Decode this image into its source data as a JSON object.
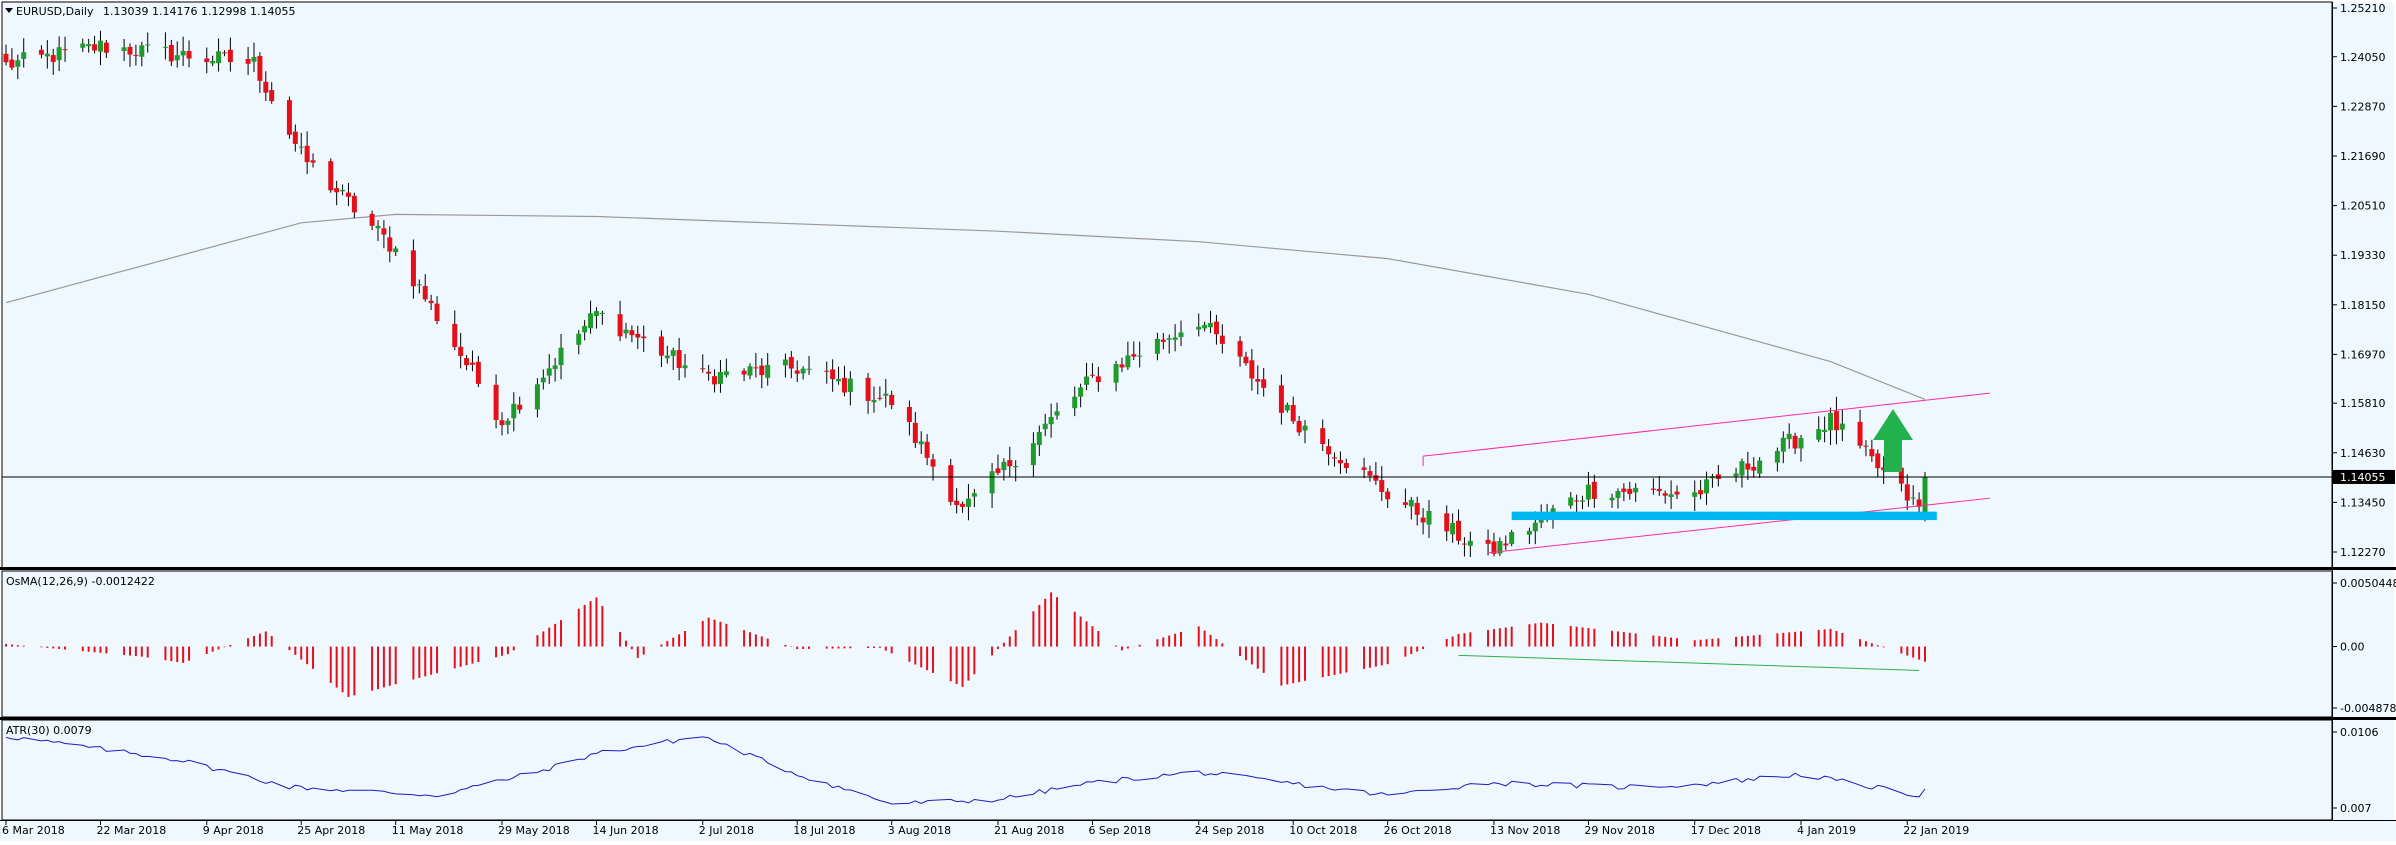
{
  "window": {
    "symbol_label": "EURUSD,Daily",
    "ohlc_label": "1.13039 1.14176 1.12998 1.14055"
  },
  "colors": {
    "background": "#f0f8ff",
    "frame": "#000000",
    "bull_candle": "#1f9a2c",
    "bear_candle": "#e3101a",
    "ma_line": "#999999",
    "channel": "#ff2aa0",
    "support_zone": "#00b7f1",
    "up_arrow": "#22b14c",
    "osma_bars": "#e3101a",
    "divergence_line": "#2fae49",
    "atr_line": "#1c1cbe",
    "price_badge": "#000000"
  },
  "chart_data": [
    {
      "type": "candlestick",
      "name": "EURUSD,Daily",
      "x_range": [
        "2018-03-06",
        "2019-01-25"
      ],
      "y_range": [
        1.2165,
        1.2563
      ],
      "y_ticks": [
        "1.25210",
        "1.24050",
        "1.22870",
        "1.21690",
        "1.20510",
        "1.19330",
        "1.18150",
        "1.16970",
        "1.15810",
        "1.14630",
        "1.13450",
        "1.12270"
      ],
      "current_price": "1.14055",
      "key_closes": [
        {
          "date": "2018-03-06",
          "close": 1.2385
        },
        {
          "date": "2018-03-22",
          "close": 1.243
        },
        {
          "date": "2018-04-17",
          "close": 1.239
        },
        {
          "date": "2018-04-25",
          "close": 1.217
        },
        {
          "date": "2018-05-11",
          "close": 1.1945
        },
        {
          "date": "2018-05-29",
          "close": 1.154
        },
        {
          "date": "2018-06-14",
          "close": 1.1795
        },
        {
          "date": "2018-07-02",
          "close": 1.1645
        },
        {
          "date": "2018-07-18",
          "close": 1.1665
        },
        {
          "date": "2018-08-03",
          "close": 1.1585
        },
        {
          "date": "2018-08-15",
          "close": 1.1325
        },
        {
          "date": "2018-09-06",
          "close": 1.164
        },
        {
          "date": "2018-09-24",
          "close": 1.178
        },
        {
          "date": "2018-10-10",
          "close": 1.1545
        },
        {
          "date": "2018-10-26",
          "close": 1.1365
        },
        {
          "date": "2018-11-12",
          "close": 1.1225
        },
        {
          "date": "2018-11-29",
          "close": 1.1375
        },
        {
          "date": "2018-12-17",
          "close": 1.1365
        },
        {
          "date": "2019-01-09",
          "close": 1.154
        },
        {
          "date": "2019-01-24",
          "close": 1.133
        },
        {
          "date": "2019-01-25",
          "close": 1.14055
        }
      ],
      "moving_average": [
        {
          "date": "2018-03-06",
          "value": 1.182
        },
        {
          "date": "2018-04-25",
          "value": 1.201
        },
        {
          "date": "2018-05-11",
          "value": 1.203
        },
        {
          "date": "2018-06-14",
          "value": 1.2025
        },
        {
          "date": "2018-08-21",
          "value": 1.199
        },
        {
          "date": "2018-09-24",
          "value": 1.1965
        },
        {
          "date": "2018-10-26",
          "value": 1.1925
        },
        {
          "date": "2018-11-29",
          "value": 1.184
        },
        {
          "date": "2019-01-09",
          "value": 1.168
        },
        {
          "date": "2019-01-25",
          "value": 1.159
        }
      ],
      "channel_upper": [
        {
          "date": "2018-11-01",
          "value": 1.1455
        },
        {
          "date": "2019-02-05",
          "value": 1.1605
        }
      ],
      "channel_lower": [
        {
          "date": "2018-11-12",
          "value": 1.1225
        },
        {
          "date": "2019-02-05",
          "value": 1.1355
        }
      ],
      "horizontal_line": 1.14055,
      "support_zone": {
        "start": "2018-11-16",
        "end": "2019-01-27",
        "low": 1.1303,
        "high": 1.1323
      },
      "annotation": "up-arrow"
    },
    {
      "type": "bar",
      "name": "OsMA(12,26,9) -0.0012422",
      "y_range": [
        -0.004878,
        0.005044
      ],
      "y_ticks": [
        "0.0050448",
        "0.00",
        "-0.0048784"
      ],
      "key_values": [
        {
          "date": "2018-03-06",
          "value": 0.0002
        },
        {
          "date": "2018-03-29",
          "value": -0.0008
        },
        {
          "date": "2018-04-05",
          "value": -0.0013
        },
        {
          "date": "2018-04-19",
          "value": 0.0012
        },
        {
          "date": "2018-05-03",
          "value": -0.004
        },
        {
          "date": "2018-05-30",
          "value": -0.0006
        },
        {
          "date": "2018-06-14",
          "value": 0.0039
        },
        {
          "date": "2018-06-21",
          "value": -0.0009
        },
        {
          "date": "2018-07-03",
          "value": 0.0023
        },
        {
          "date": "2018-07-18",
          "value": -0.0002
        },
        {
          "date": "2018-08-01",
          "value": -0.0001
        },
        {
          "date": "2018-08-15",
          "value": -0.0032
        },
        {
          "date": "2018-08-30",
          "value": 0.0043
        },
        {
          "date": "2018-09-11",
          "value": -0.0003
        },
        {
          "date": "2018-09-24",
          "value": 0.0016
        },
        {
          "date": "2018-10-08",
          "value": -0.0031
        },
        {
          "date": "2018-10-26",
          "value": -0.0014
        },
        {
          "date": "2018-11-07",
          "value": 0.001
        },
        {
          "date": "2018-11-21",
          "value": 0.0019
        },
        {
          "date": "2018-12-17",
          "value": 0.0005
        },
        {
          "date": "2019-01-09",
          "value": 0.0014
        },
        {
          "date": "2019-01-25",
          "value": -0.0012
        }
      ],
      "divergence_line": [
        {
          "date": "2018-11-07",
          "value": -0.0007
        },
        {
          "date": "2019-01-24",
          "value": -0.0019
        }
      ]
    },
    {
      "type": "line",
      "name": "ATR(30) 0.0079",
      "y_range": [
        0.0069,
        0.0108
      ],
      "y_ticks": [
        "0.0106",
        "0.007"
      ],
      "points": [
        {
          "date": "2018-03-06",
          "value": 0.0104
        },
        {
          "date": "2018-04-04",
          "value": 0.0093
        },
        {
          "date": "2018-04-23",
          "value": 0.008
        },
        {
          "date": "2018-05-18",
          "value": 0.0076
        },
        {
          "date": "2018-06-04",
          "value": 0.0087
        },
        {
          "date": "2018-06-14",
          "value": 0.0096
        },
        {
          "date": "2018-07-02",
          "value": 0.0104
        },
        {
          "date": "2018-07-18",
          "value": 0.0086
        },
        {
          "date": "2018-08-03",
          "value": 0.0072
        },
        {
          "date": "2018-08-21",
          "value": 0.0074
        },
        {
          "date": "2018-09-06",
          "value": 0.0082
        },
        {
          "date": "2018-09-24",
          "value": 0.0087
        },
        {
          "date": "2018-10-26",
          "value": 0.0076
        },
        {
          "date": "2018-11-12",
          "value": 0.0082
        },
        {
          "date": "2018-12-04",
          "value": 0.008
        },
        {
          "date": "2018-12-17",
          "value": 0.0081
        },
        {
          "date": "2019-01-04",
          "value": 0.0086
        },
        {
          "date": "2019-01-24",
          "value": 0.0076
        },
        {
          "date": "2019-01-25",
          "value": 0.0079
        }
      ]
    }
  ],
  "x_axis": {
    "tick_labels": [
      "6 Mar 2018",
      "22 Mar 2018",
      "9 Apr 2018",
      "25 Apr 2018",
      "11 May 2018",
      "29 May 2018",
      "14 Jun 2018",
      "2 Jul 2018",
      "18 Jul 2018",
      "3 Aug 2018",
      "21 Aug 2018",
      "6 Sep 2018",
      "24 Sep 2018",
      "10 Oct 2018",
      "26 Oct 2018",
      "13 Nov 2018",
      "29 Nov 2018",
      "17 Dec 2018",
      "4 Jan 2019",
      "22 Jan 2019"
    ],
    "tick_dates": [
      "2018-03-06",
      "2018-03-22",
      "2018-04-09",
      "2018-04-25",
      "2018-05-11",
      "2018-05-29",
      "2018-06-14",
      "2018-07-02",
      "2018-07-18",
      "2018-08-03",
      "2018-08-21",
      "2018-09-06",
      "2018-09-24",
      "2018-10-10",
      "2018-10-26",
      "2018-11-13",
      "2018-11-29",
      "2018-12-17",
      "2019-01-04",
      "2019-01-22"
    ]
  }
}
